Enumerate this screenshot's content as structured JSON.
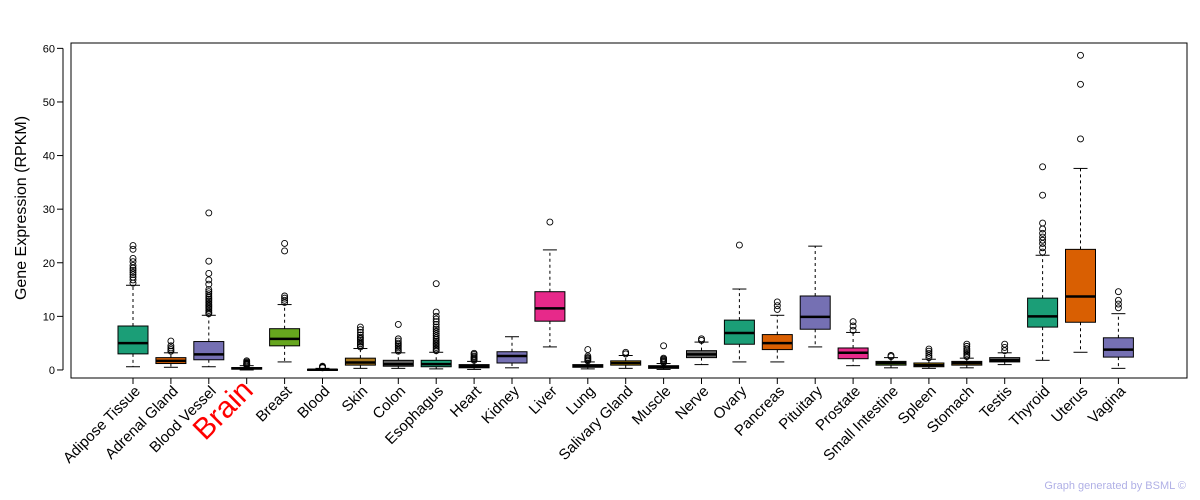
{
  "chart_data": {
    "type": "box",
    "title": "",
    "xlabel": "",
    "ylabel": "Gene Expression (RPKM)",
    "ylim": [
      -1.5,
      61
    ],
    "yticks": [
      0,
      10,
      20,
      30,
      40,
      50,
      60
    ],
    "highlight_category": "Brain",
    "highlight_color": "#ff0000",
    "categories": [
      {
        "name": "Adipose Tissue",
        "color": "#1b9e77",
        "min": 0.6,
        "q1": 3.0,
        "median": 5.0,
        "q3": 8.2,
        "max": 15.8,
        "outliers": [
          16.2,
          16.8,
          17.3,
          17.8,
          18.2,
          18.6,
          19.0,
          19.5,
          20.2,
          20.8,
          22.5,
          23.2
        ]
      },
      {
        "name": "Adrenal Gland",
        "color": "#d95f02",
        "min": 0.5,
        "q1": 1.2,
        "median": 1.7,
        "q3": 2.3,
        "max": 3.2,
        "outliers": [
          3.5,
          3.8,
          4.1,
          4.5,
          5.4
        ]
      },
      {
        "name": "Blood Vessel",
        "color": "#7570b3",
        "min": 0.6,
        "q1": 1.9,
        "median": 2.9,
        "q3": 5.3,
        "max": 10.2,
        "outliers": [
          10.5,
          10.8,
          11.1,
          11.4,
          11.7,
          12.0,
          12.3,
          12.6,
          12.9,
          13.2,
          13.5,
          13.8,
          14.2,
          14.6,
          15.0,
          16.0,
          16.8,
          18.0,
          20.3,
          29.3
        ]
      },
      {
        "name": "Brain",
        "color": "#e7298a",
        "min": 0.0,
        "q1": 0.15,
        "median": 0.3,
        "q3": 0.45,
        "max": 0.8,
        "outliers": [
          0.9,
          1.0,
          1.1,
          1.2,
          1.3,
          1.5,
          1.7
        ]
      },
      {
        "name": "Breast",
        "color": "#66a61e",
        "min": 1.5,
        "q1": 4.5,
        "median": 5.8,
        "q3": 7.7,
        "max": 12.2,
        "outliers": [
          12.6,
          13.0,
          13.4,
          13.8,
          22.2,
          23.6
        ]
      },
      {
        "name": "Blood",
        "color": "#e6ab02",
        "min": 0.0,
        "q1": 0.02,
        "median": 0.05,
        "q3": 0.12,
        "max": 0.3,
        "outliers": [
          0.4,
          0.55,
          0.7
        ]
      },
      {
        "name": "Skin",
        "color": "#a6761d",
        "min": 0.3,
        "q1": 0.9,
        "median": 1.4,
        "q3": 2.2,
        "max": 4.0,
        "outliers": [
          4.3,
          4.6,
          4.9,
          5.2,
          5.5,
          5.8,
          6.1,
          6.5,
          7.0,
          7.5,
          8.0
        ]
      },
      {
        "name": "Colon",
        "color": "#666666",
        "min": 0.3,
        "q1": 0.7,
        "median": 1.1,
        "q3": 1.8,
        "max": 3.2,
        "outliers": [
          3.5,
          3.8,
          4.1,
          4.4,
          4.7,
          5.0,
          5.4,
          5.8,
          8.5
        ]
      },
      {
        "name": "Esophagus",
        "color": "#1b9e77",
        "min": 0.2,
        "q1": 0.6,
        "median": 1.1,
        "q3": 1.8,
        "max": 3.3,
        "outliers": [
          3.6,
          3.9,
          4.2,
          4.5,
          4.8,
          5.1,
          5.4,
          5.7,
          6.0,
          6.4,
          6.8,
          7.2,
          7.6,
          8.0,
          8.5,
          9.0,
          9.5,
          10.0,
          10.8,
          16.1
        ]
      },
      {
        "name": "Heart",
        "color": "#d95f02",
        "min": 0.1,
        "q1": 0.4,
        "median": 0.7,
        "q3": 1.0,
        "max": 1.6,
        "outliers": [
          1.8,
          2.0,
          2.2,
          2.4,
          2.6,
          2.9,
          3.1
        ]
      },
      {
        "name": "Kidney",
        "color": "#7570b3",
        "min": 0.4,
        "q1": 1.3,
        "median": 2.6,
        "q3": 3.4,
        "max": 6.2,
        "outliers": []
      },
      {
        "name": "Liver",
        "color": "#e7298a",
        "min": 4.3,
        "q1": 9.1,
        "median": 11.5,
        "q3": 14.6,
        "max": 22.4,
        "outliers": [
          27.6
        ]
      },
      {
        "name": "Lung",
        "color": "#66a61e",
        "min": 0.2,
        "q1": 0.5,
        "median": 0.7,
        "q3": 1.0,
        "max": 1.5,
        "outliers": [
          1.7,
          1.9,
          2.1,
          2.3,
          2.6,
          3.8
        ]
      },
      {
        "name": "Salivary Gland",
        "color": "#e6ab02",
        "min": 0.3,
        "q1": 0.9,
        "median": 1.3,
        "q3": 1.7,
        "max": 2.7,
        "outliers": [
          3.0,
          3.3
        ]
      },
      {
        "name": "Muscle",
        "color": "#a6761d",
        "min": 0.1,
        "q1": 0.3,
        "median": 0.5,
        "q3": 0.8,
        "max": 1.2,
        "outliers": [
          1.4,
          1.6,
          1.8,
          2.0,
          2.2,
          4.5
        ]
      },
      {
        "name": "Nerve",
        "color": "#666666",
        "min": 1.0,
        "q1": 2.3,
        "median": 2.9,
        "q3": 3.6,
        "max": 5.2,
        "outliers": [
          5.5,
          5.8
        ]
      },
      {
        "name": "Ovary",
        "color": "#1b9e77",
        "min": 1.5,
        "q1": 4.8,
        "median": 6.9,
        "q3": 9.3,
        "max": 15.1,
        "outliers": [
          23.3
        ]
      },
      {
        "name": "Pancreas",
        "color": "#d95f02",
        "min": 1.5,
        "q1": 3.8,
        "median": 5.0,
        "q3": 6.6,
        "max": 10.2,
        "outliers": [
          11.3,
          12.0,
          12.7
        ]
      },
      {
        "name": "Pituitary",
        "color": "#7570b3",
        "min": 4.3,
        "q1": 7.6,
        "median": 9.9,
        "q3": 13.8,
        "max": 23.1,
        "outliers": []
      },
      {
        "name": "Prostate",
        "color": "#e7298a",
        "min": 0.8,
        "q1": 2.1,
        "median": 3.2,
        "q3": 4.1,
        "max": 7.0,
        "outliers": [
          7.4,
          8.2,
          9.0
        ]
      },
      {
        "name": "Small Intestine",
        "color": "#66a61e",
        "min": 0.4,
        "q1": 0.9,
        "median": 1.3,
        "q3": 1.6,
        "max": 2.3,
        "outliers": [
          2.5,
          2.7
        ]
      },
      {
        "name": "Spleen",
        "color": "#e6ab02",
        "min": 0.3,
        "q1": 0.6,
        "median": 0.9,
        "q3": 1.3,
        "max": 2.0,
        "outliers": [
          2.3,
          2.7,
          3.1,
          3.5,
          3.9
        ]
      },
      {
        "name": "Stomach",
        "color": "#a6761d",
        "min": 0.4,
        "q1": 0.9,
        "median": 1.3,
        "q3": 1.6,
        "max": 2.2,
        "outliers": [
          2.5,
          2.8,
          3.1,
          3.4,
          3.7,
          4.0,
          4.4,
          4.8
        ]
      },
      {
        "name": "Testis",
        "color": "#666666",
        "min": 1.0,
        "q1": 1.5,
        "median": 1.8,
        "q3": 2.3,
        "max": 3.2,
        "outliers": [
          3.6,
          4.2,
          4.8
        ]
      },
      {
        "name": "Thyroid",
        "color": "#1b9e77",
        "min": 1.8,
        "q1": 8.0,
        "median": 10.0,
        "q3": 13.4,
        "max": 21.4,
        "outliers": [
          22.0,
          22.8,
          23.6,
          24.2,
          24.8,
          25.5,
          26.3,
          27.4,
          32.6,
          37.9
        ]
      },
      {
        "name": "Uterus",
        "color": "#d95f02",
        "min": 3.3,
        "q1": 8.9,
        "median": 13.7,
        "q3": 22.5,
        "max": 37.6,
        "outliers": [
          43.1,
          53.3,
          58.7
        ]
      },
      {
        "name": "Vagina",
        "color": "#7570b3",
        "min": 0.3,
        "q1": 2.4,
        "median": 3.8,
        "q3": 6.0,
        "max": 10.5,
        "outliers": [
          11.6,
          12.3,
          13.0,
          14.6
        ]
      }
    ]
  },
  "footer": {
    "credit": "Graph generated by BSML ©"
  }
}
